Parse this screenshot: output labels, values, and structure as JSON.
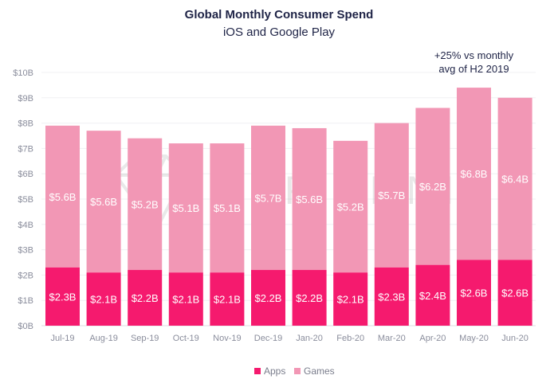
{
  "chart_data": {
    "type": "bar",
    "stacked": true,
    "title": "Global Monthly Consumer Spend",
    "subtitle": "iOS and Google Play",
    "categories": [
      "Jul-19",
      "Aug-19",
      "Sep-19",
      "Oct-19",
      "Nov-19",
      "Dec-19",
      "Jan-20",
      "Feb-20",
      "Mar-20",
      "Apr-20",
      "May-20",
      "Jun-20"
    ],
    "series": [
      {
        "name": "Apps",
        "color": "#f51a6e",
        "values": [
          2.3,
          2.1,
          2.2,
          2.1,
          2.1,
          2.2,
          2.2,
          2.1,
          2.3,
          2.4,
          2.6,
          2.6
        ],
        "labels": [
          "$2.3B",
          "$2.1B",
          "$2.2B",
          "$2.1B",
          "$2.1B",
          "$2.2B",
          "$2.2B",
          "$2.1B",
          "$2.3B",
          "$2.4B",
          "$2.6B",
          "$2.6B"
        ]
      },
      {
        "name": "Games",
        "color": "#f297b5",
        "values": [
          5.6,
          5.6,
          5.2,
          5.1,
          5.1,
          5.7,
          5.6,
          5.2,
          5.7,
          6.2,
          6.8,
          6.4
        ],
        "labels": [
          "$5.6B",
          "$5.6B",
          "$5.2B",
          "$5.1B",
          "$5.1B",
          "$5.7B",
          "$5.6B",
          "$5.2B",
          "$5.7B",
          "$6.2B",
          "$6.8B",
          "$6.4B"
        ]
      }
    ],
    "yticks": [
      "$0B",
      "$1B",
      "$2B",
      "$3B",
      "$4B",
      "$5B",
      "$6B",
      "$7B",
      "$8B",
      "$9B",
      "$10B"
    ],
    "ylim": [
      0,
      10
    ],
    "yunit": "$B",
    "grid": true,
    "legend": "bottom-center",
    "annotation": {
      "lines": [
        "+25% vs monthly",
        "avg of H2 2019"
      ],
      "category": "May-20"
    },
    "watermark": "APP ANNIE"
  }
}
